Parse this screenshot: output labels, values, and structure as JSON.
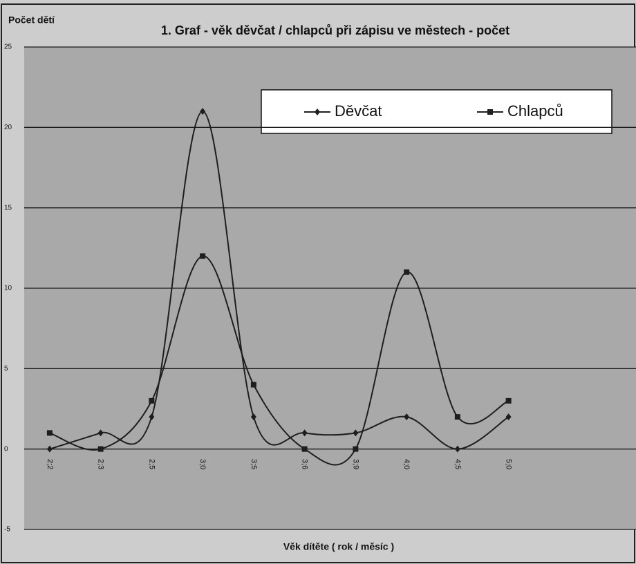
{
  "chart_data": {
    "type": "line",
    "title": "1. Graf - věk děvčat / chlapců při zápisu ve městech - počet",
    "y_label": "Počet dětí",
    "x_label": "Věk dítěte ( rok / měsíc )",
    "categories": [
      "2;2",
      "2;3",
      "2;5",
      "3;0",
      "3;5",
      "3;6",
      "3;9",
      "4;0",
      "4;5",
      "5;0",
      null,
      null
    ],
    "series": [
      {
        "name": "Děvčat",
        "color": "#1e1e1e",
        "marker": "diamond",
        "values": [
          0,
          1,
          2,
          21,
          2,
          1,
          1,
          2,
          0,
          2,
          null,
          null
        ]
      },
      {
        "name": "Chlapců",
        "color": "#1e1e1e",
        "marker": "square",
        "values": [
          1,
          0,
          3,
          12,
          4,
          0,
          0,
          11,
          2,
          3,
          null,
          null
        ]
      }
    ],
    "ylim": [
      -5,
      25
    ],
    "yticks": [
      -5,
      0,
      5,
      10,
      15,
      20,
      25
    ],
    "grid": true,
    "smooth": true,
    "legend": "top-right"
  }
}
